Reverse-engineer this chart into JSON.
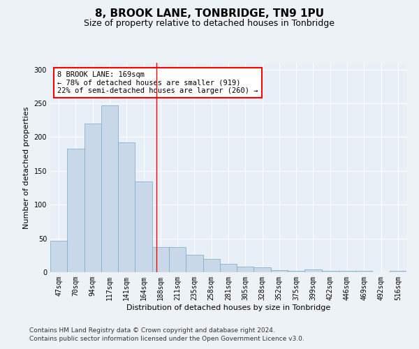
{
  "title1": "8, BROOK LANE, TONBRIDGE, TN9 1PU",
  "title2": "Size of property relative to detached houses in Tonbridge",
  "xlabel": "Distribution of detached houses by size in Tonbridge",
  "ylabel": "Number of detached properties",
  "bins": [
    "47sqm",
    "70sqm",
    "94sqm",
    "117sqm",
    "141sqm",
    "164sqm",
    "188sqm",
    "211sqm",
    "235sqm",
    "258sqm",
    "281sqm",
    "305sqm",
    "328sqm",
    "352sqm",
    "375sqm",
    "399sqm",
    "422sqm",
    "446sqm",
    "469sqm",
    "492sqm",
    "516sqm"
  ],
  "values": [
    46,
    183,
    220,
    247,
    192,
    134,
    37,
    37,
    26,
    20,
    12,
    8,
    7,
    3,
    2,
    4,
    2,
    2,
    2,
    0,
    2
  ],
  "bar_color": "#c8d8e8",
  "bar_edge_color": "#7aa8c8",
  "red_line_x": 5.77,
  "annotation_text": "8 BROOK LANE: 169sqm\n← 78% of detached houses are smaller (919)\n22% of semi-detached houses are larger (260) →",
  "annotation_box_color": "white",
  "annotation_box_edge": "red",
  "ylim": [
    0,
    310
  ],
  "yticks": [
    0,
    50,
    100,
    150,
    200,
    250,
    300
  ],
  "background_color": "#edf2f7",
  "axes_bg_color": "#e8eff6",
  "footer1": "Contains HM Land Registry data © Crown copyright and database right 2024.",
  "footer2": "Contains public sector information licensed under the Open Government Licence v3.0.",
  "title1_fontsize": 11,
  "title2_fontsize": 9,
  "xlabel_fontsize": 8,
  "ylabel_fontsize": 8,
  "tick_fontsize": 7,
  "annotation_fontsize": 7.5,
  "footer_fontsize": 6.5
}
